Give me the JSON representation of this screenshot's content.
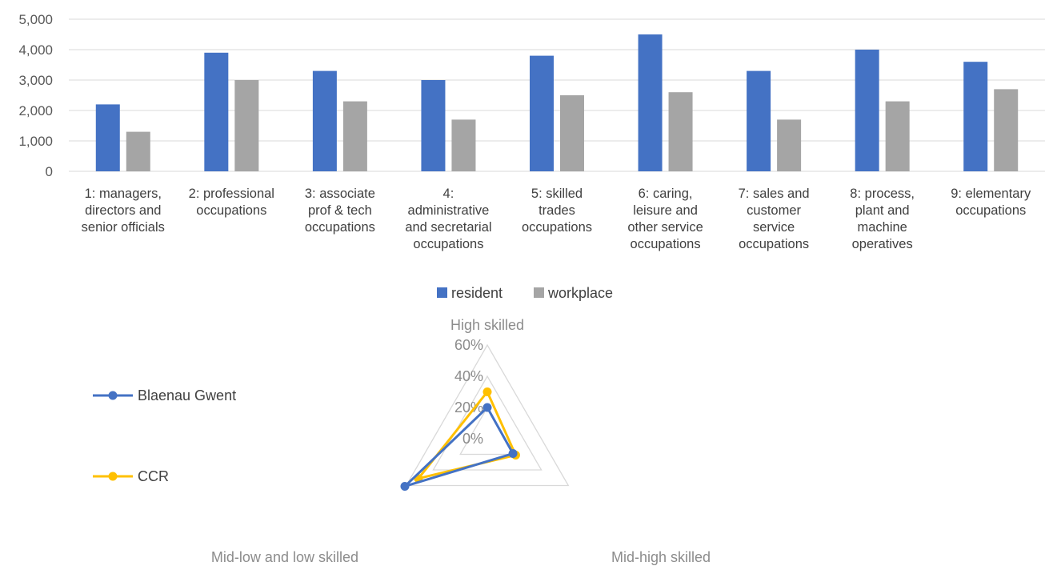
{
  "chart_data": [
    {
      "type": "bar",
      "title": "",
      "xlabel": "",
      "ylabel": "",
      "ylim": [
        0,
        5000
      ],
      "yticks": [
        "0",
        "1,000",
        "2,000",
        "3,000",
        "4,000",
        "5,000"
      ],
      "grid": true,
      "legend_position": "bottom",
      "categories": [
        [
          "1: managers,",
          "directors and",
          "senior officials"
        ],
        [
          "2: professional",
          "occupations"
        ],
        [
          "3: associate",
          "prof & tech",
          "occupations"
        ],
        [
          "4:",
          "administrative",
          "and secretarial",
          "occupations"
        ],
        [
          "5: skilled",
          "trades",
          "occupations"
        ],
        [
          "6: caring,",
          "leisure and",
          "other service",
          "occupations"
        ],
        [
          "7: sales and",
          "customer",
          "service",
          "occupations"
        ],
        [
          "8: process,",
          "plant and",
          "machine",
          "operatives"
        ],
        [
          "9: elementary",
          "occupations"
        ]
      ],
      "series": [
        {
          "name": "resident",
          "color": "#4472C4",
          "values": [
            2200,
            3900,
            3300,
            3000,
            3800,
            4500,
            3300,
            4000,
            3600
          ]
        },
        {
          "name": "workplace",
          "color": "#A5A5A5",
          "values": [
            1300,
            3000,
            2300,
            1700,
            2500,
            2600,
            1700,
            2300,
            2700
          ]
        }
      ]
    },
    {
      "type": "radar",
      "title": "",
      "axes": [
        "High skilled",
        "Mid-high skilled",
        "Mid-low and low skilled"
      ],
      "rlim": [
        0,
        0.6
      ],
      "rticks": [
        "0%",
        "20%",
        "40%",
        "60%"
      ],
      "grid": true,
      "legend_position": "left",
      "series": [
        {
          "name": "Blaenau Gwent",
          "color": "#4472C4",
          "values": [
            0.2,
            0.19,
            0.61
          ]
        },
        {
          "name": "CCR",
          "color": "#FFC000",
          "values": [
            0.3,
            0.21,
            0.51
          ]
        }
      ]
    }
  ]
}
